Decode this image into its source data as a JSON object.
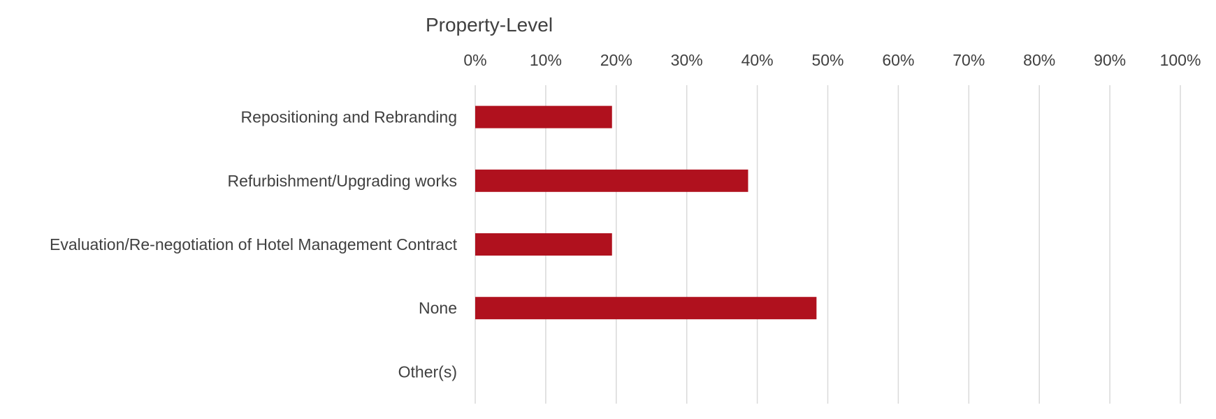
{
  "chart_data": {
    "type": "bar",
    "orientation": "horizontal",
    "title": "Property-Level",
    "categories": [
      "Repositioning and Rebranding",
      "Refurbishment/Upgrading works",
      "Evaluation/Re-negotiation of Hotel Management Contract",
      "None",
      "Other(s)"
    ],
    "values": [
      0.194,
      0.387,
      0.194,
      0.484,
      0
    ],
    "xlim": [
      0,
      1
    ],
    "x_ticks": [
      "0%",
      "10%",
      "20%",
      "30%",
      "40%",
      "50%",
      "60%",
      "70%",
      "80%",
      "90%",
      "100%"
    ],
    "x_axis_position": "top",
    "grid": true,
    "bar_color": "#b0111e",
    "grid_color": "#d9d9d9",
    "text_color": "#404040"
  }
}
